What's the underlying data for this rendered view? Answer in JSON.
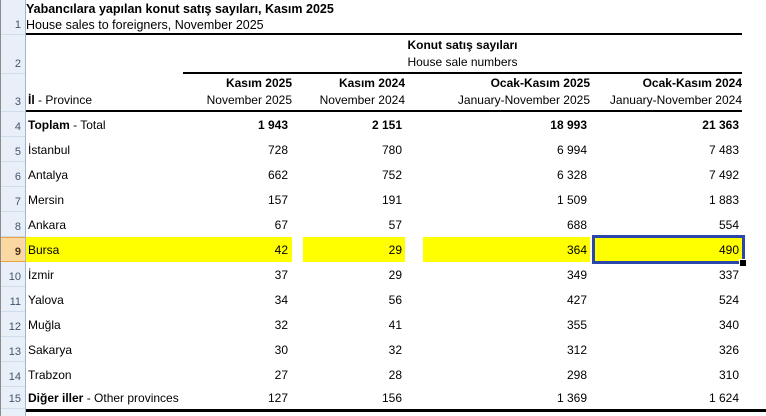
{
  "title": {
    "line1": "Yabancılara yapılan konut satış sayıları, Kasım 2025",
    "line2": "House sales to foreigners, November 2025"
  },
  "group": {
    "line1": "Konut satış sayıları",
    "line2": "House sale numbers"
  },
  "rowhead": {
    "bold": "İl",
    "rest": " - Province"
  },
  "cols": {
    "c1": {
      "tr": "Kasım 2025",
      "en": "November 2025"
    },
    "c2": {
      "tr": "Kasım 2024",
      "en": "November 2024"
    },
    "c3": {
      "tr": "Ocak-Kasım 2025",
      "en": "January-November 2025"
    },
    "c4": {
      "tr": "Ocak-Kasım 2024",
      "en": "January-November 2024"
    }
  },
  "gutter": {
    "r1": "1",
    "r2": "2",
    "r3": "3"
  },
  "rows": [
    {
      "n": "4",
      "lb": "Toplam",
      "lr": " - Total",
      "v1": "1 943",
      "v2": "2 151",
      "v3": "18 993",
      "v4": "21 363"
    },
    {
      "n": "5",
      "lb": "",
      "lr": "İstanbul",
      "v1": "728",
      "v2": "780",
      "v3": "6 994",
      "v4": "7 483"
    },
    {
      "n": "6",
      "lb": "",
      "lr": "Antalya",
      "v1": "662",
      "v2": "752",
      "v3": "6 328",
      "v4": "7 492"
    },
    {
      "n": "7",
      "lb": "",
      "lr": "Mersin",
      "v1": "157",
      "v2": "191",
      "v3": "1 509",
      "v4": "1 883"
    },
    {
      "n": "8",
      "lb": "",
      "lr": "Ankara",
      "v1": "67",
      "v2": "57",
      "v3": "688",
      "v4": "554"
    },
    {
      "n": "9",
      "lb": "",
      "lr": "Bursa",
      "v1": "42",
      "v2": "29",
      "v3": "364",
      "v4": "490"
    },
    {
      "n": "10",
      "lb": "",
      "lr": "İzmir",
      "v1": "37",
      "v2": "29",
      "v3": "349",
      "v4": "337"
    },
    {
      "n": "11",
      "lb": "",
      "lr": "Yalova",
      "v1": "34",
      "v2": "56",
      "v3": "427",
      "v4": "524"
    },
    {
      "n": "12",
      "lb": "",
      "lr": "Muğla",
      "v1": "32",
      "v2": "41",
      "v3": "355",
      "v4": "340"
    },
    {
      "n": "13",
      "lb": "",
      "lr": "Sakarya",
      "v1": "30",
      "v2": "32",
      "v3": "312",
      "v4": "326"
    },
    {
      "n": "14",
      "lb": "",
      "lr": "Trabzon",
      "v1": "27",
      "v2": "28",
      "v3": "298",
      "v4": "310"
    },
    {
      "n": "15",
      "lb": "Diğer iller",
      "lr": " - Other provinces",
      "v1": "127",
      "v2": "156",
      "v3": "1 369",
      "v4": "1 624"
    }
  ],
  "colors": {
    "highlight": "#FFFF00",
    "selection_border": "#2B47A9",
    "gutter_bg": "#E9EFF8",
    "gutter_selected_bg": "#FBD7A2",
    "rule": "#000000"
  }
}
